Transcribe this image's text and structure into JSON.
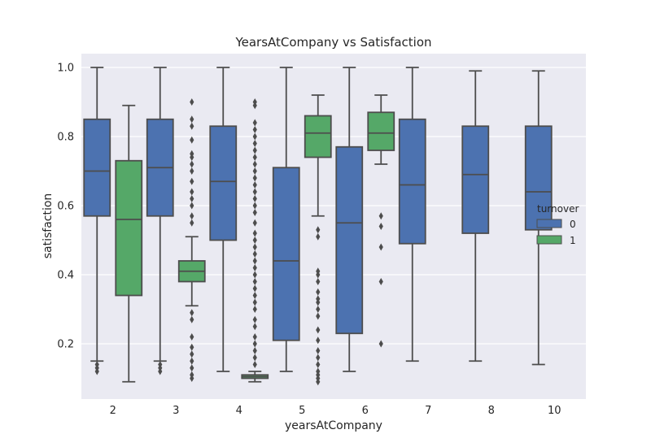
{
  "chart_data": {
    "type": "box",
    "title": "YearsAtCompany vs Satisfaction",
    "xlabel": "yearsAtCompany",
    "ylabel": "satisfaction",
    "ylim": [
      0.04,
      1.04
    ],
    "yticks": [
      0.2,
      0.4,
      0.6,
      0.8,
      1.0
    ],
    "categories": [
      "2",
      "3",
      "4",
      "5",
      "6",
      "7",
      "8",
      "10"
    ],
    "grid": true,
    "legend": {
      "title": "turnover",
      "placement": "right",
      "entries": [
        {
          "label": "0",
          "color": "#4c72b0"
        },
        {
          "label": "1",
          "color": "#55a868"
        }
      ]
    },
    "colors": {
      "background": "#eaeaf2",
      "line": "#4d4d4d",
      "series0": "#4c72b0",
      "series1": "#55a868"
    },
    "series": [
      {
        "name": "0",
        "boxes": [
          {
            "category": "2",
            "whislo": 0.15,
            "q1": 0.57,
            "median": 0.7,
            "q3": 0.85,
            "whishi": 1.0,
            "fliers": [
              0.12,
              0.13,
              0.14
            ]
          },
          {
            "category": "3",
            "whislo": 0.15,
            "q1": 0.57,
            "median": 0.71,
            "q3": 0.85,
            "whishi": 1.0,
            "fliers": [
              0.12,
              0.13,
              0.14
            ]
          },
          {
            "category": "4",
            "whislo": 0.12,
            "q1": 0.5,
            "median": 0.67,
            "q3": 0.83,
            "whishi": 1.0,
            "fliers": []
          },
          {
            "category": "5",
            "whislo": 0.12,
            "q1": 0.21,
            "median": 0.44,
            "q3": 0.71,
            "whishi": 1.0,
            "fliers": []
          },
          {
            "category": "6",
            "whislo": 0.12,
            "q1": 0.23,
            "median": 0.55,
            "q3": 0.77,
            "whishi": 1.0,
            "fliers": []
          },
          {
            "category": "7",
            "whislo": 0.15,
            "q1": 0.49,
            "median": 0.66,
            "q3": 0.85,
            "whishi": 1.0,
            "fliers": []
          },
          {
            "category": "8",
            "whislo": 0.15,
            "q1": 0.52,
            "median": 0.69,
            "q3": 0.83,
            "whishi": 0.99,
            "fliers": []
          },
          {
            "category": "10",
            "whislo": 0.14,
            "q1": 0.53,
            "median": 0.64,
            "q3": 0.83,
            "whishi": 0.99,
            "fliers": []
          }
        ]
      },
      {
        "name": "1",
        "boxes": [
          {
            "category": "2",
            "whislo": 0.09,
            "q1": 0.34,
            "median": 0.56,
            "q3": 0.73,
            "whishi": 0.89,
            "fliers": []
          },
          {
            "category": "3",
            "whislo": 0.31,
            "q1": 0.38,
            "median": 0.41,
            "q3": 0.44,
            "whishi": 0.51,
            "fliers": [
              0.1,
              0.11,
              0.13,
              0.15,
              0.17,
              0.19,
              0.22,
              0.27,
              0.29,
              0.55,
              0.57,
              0.6,
              0.62,
              0.64,
              0.67,
              0.7,
              0.72,
              0.74,
              0.75,
              0.79,
              0.83,
              0.85,
              0.9
            ]
          },
          {
            "category": "4",
            "whislo": 0.09,
            "q1": 0.1,
            "median": 0.105,
            "q3": 0.11,
            "whishi": 0.12,
            "fliers": [
              0.14,
              0.16,
              0.18,
              0.2,
              0.22,
              0.25,
              0.27,
              0.3,
              0.32,
              0.34,
              0.36,
              0.38,
              0.4,
              0.42,
              0.44,
              0.46,
              0.48,
              0.5,
              0.52,
              0.55,
              0.58,
              0.6,
              0.62,
              0.64,
              0.66,
              0.68,
              0.7,
              0.72,
              0.74,
              0.76,
              0.78,
              0.8,
              0.82,
              0.84,
              0.89,
              0.9
            ]
          },
          {
            "category": "5",
            "whislo": 0.57,
            "q1": 0.74,
            "median": 0.81,
            "q3": 0.86,
            "whishi": 0.92,
            "fliers": [
              0.09,
              0.1,
              0.11,
              0.12,
              0.14,
              0.16,
              0.18,
              0.21,
              0.24,
              0.28,
              0.3,
              0.32,
              0.33,
              0.35,
              0.38,
              0.4,
              0.41,
              0.51,
              0.53
            ]
          },
          {
            "category": "6",
            "whislo": 0.72,
            "q1": 0.76,
            "median": 0.81,
            "q3": 0.87,
            "whishi": 0.92,
            "fliers": [
              0.2,
              0.38,
              0.48,
              0.54,
              0.57
            ]
          }
        ]
      }
    ]
  }
}
